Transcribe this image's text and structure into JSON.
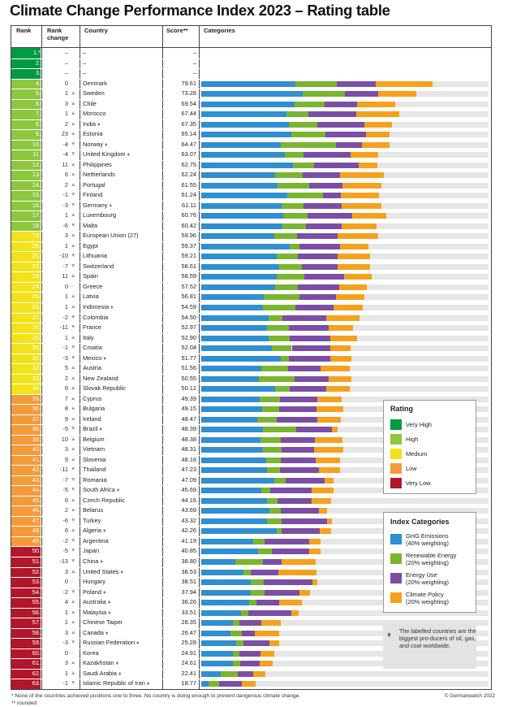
{
  "title": "Climate Change Performance Index 2023 – Rating table",
  "headers": {
    "rank": "Rank",
    "rank_change": "Rank change",
    "country": "Country",
    "score": "Score**",
    "categories": "Categories"
  },
  "colors": {
    "very_high": "#009a44",
    "high": "#8dc63f",
    "medium": "#f2e21b",
    "low": "#f49a3a",
    "very_low": "#b2162b",
    "ghg": "#2f8fd0",
    "renewable": "#7ab52f",
    "energy": "#7b4ea6",
    "policy": "#f5a11d",
    "track": "#e6e6e6",
    "flame_icon": "#777777"
  },
  "empty_rows": [
    {
      "rank": "1.*",
      "change": "–",
      "country": "–",
      "score": "–"
    },
    {
      "rank": "2.",
      "change": "–",
      "country": "–",
      "score": "–"
    },
    {
      "rank": "3.",
      "change": "–",
      "country": "–",
      "score": "–"
    }
  ],
  "chart_data": {
    "type": "stacked bar",
    "title": "Climate Change Performance Index 2023 – Rating table",
    "score_max": 100,
    "segment_order": [
      "GHG Emissions",
      "Renewable Energy",
      "Energy Use",
      "Climate Policy"
    ],
    "rows": [
      {
        "rank": "4.",
        "change": "0",
        "dir": "flat",
        "country": "Denmark",
        "score": "79.61",
        "rating": "high",
        "flame": false,
        "seg": [
          32.7,
          14.5,
          13.4,
          20.0
        ]
      },
      {
        "rank": "5.",
        "change": "1",
        "dir": "up",
        "country": "Sweden",
        "score": "73.28",
        "rating": "high",
        "flame": false,
        "seg": [
          35.2,
          14.7,
          11.8,
          13.1
        ]
      },
      {
        "rank": "6.",
        "change": "3",
        "dir": "up",
        "country": "Chile",
        "score": "69.54",
        "rating": "high",
        "flame": false,
        "seg": [
          32.6,
          10.4,
          11.3,
          13.1
        ]
      },
      {
        "rank": "7.",
        "change": "1",
        "dir": "up",
        "country": "Morocco",
        "score": "67.44",
        "rating": "high",
        "flame": false,
        "seg": [
          29.6,
          7.6,
          16.8,
          14.9
        ]
      },
      {
        "rank": "8.",
        "change": "2",
        "dir": "up",
        "country": "India",
        "score": "67.35",
        "rating": "high",
        "flame": true,
        "seg": [
          30.5,
          10.0,
          16.3,
          9.5
        ]
      },
      {
        "rank": "9.",
        "change": "23",
        "dir": "up",
        "country": "Estonia",
        "score": "65.14",
        "rating": "high",
        "flame": false,
        "seg": [
          31.4,
          11.9,
          14.1,
          8.1
        ]
      },
      {
        "rank": "10.",
        "change": "-4",
        "dir": "down",
        "country": "Norway",
        "score": "64.47",
        "rating": "high",
        "flame": true,
        "seg": [
          27.6,
          19.4,
          9.0,
          9.6
        ]
      },
      {
        "rank": "11.",
        "change": "-4",
        "dir": "down",
        "country": "United Kingdom",
        "score": "63.07",
        "rating": "high",
        "flame": true,
        "seg": [
          29.1,
          6.4,
          16.4,
          9.6
        ]
      },
      {
        "rank": "12.",
        "change": "11",
        "dir": "up",
        "country": "Philippines",
        "score": "62.75",
        "rating": "high",
        "flame": false,
        "seg": [
          31.9,
          7.3,
          15.5,
          6.5
        ]
      },
      {
        "rank": "13.",
        "change": "6",
        "dir": "up",
        "country": "Netherlands",
        "score": "62.24",
        "rating": "high",
        "flame": false,
        "seg": [
          25.7,
          9.6,
          13.0,
          15.2
        ]
      },
      {
        "rank": "14.",
        "change": "2",
        "dir": "up",
        "country": "Portugal",
        "score": "61.55",
        "rating": "high",
        "flame": false,
        "seg": [
          26.5,
          11.0,
          11.6,
          13.6
        ]
      },
      {
        "rank": "15.",
        "change": "-1",
        "dir": "down",
        "country": "Finland",
        "score": "61.24",
        "rating": "high",
        "flame": false,
        "seg": [
          29.9,
          12.4,
          6.2,
          13.4
        ]
      },
      {
        "rank": "16.",
        "change": "-3",
        "dir": "down",
        "country": "Germany",
        "score": "61.11",
        "rating": "high",
        "flame": true,
        "seg": [
          27.9,
          7.6,
          13.3,
          13.9
        ]
      },
      {
        "rank": "17.",
        "change": "1",
        "dir": "up",
        "country": "Luxembourg",
        "score": "60.76",
        "rating": "high",
        "flame": false,
        "seg": [
          28.6,
          8.5,
          15.5,
          11.9
        ]
      },
      {
        "rank": "18.",
        "change": "-6",
        "dir": "down",
        "country": "Malta",
        "score": "60.42",
        "rating": "high",
        "flame": false,
        "seg": [
          28.3,
          8.2,
          12.5,
          12.1
        ]
      },
      {
        "rank": "19.",
        "change": "3",
        "dir": "up",
        "country": "European Union (27)",
        "score": "59.96",
        "rating": "medium",
        "flame": false,
        "seg": [
          25.5,
          7.9,
          14.1,
          14.1
        ]
      },
      {
        "rank": "20.",
        "change": "1",
        "dir": "up",
        "country": "Egypt",
        "score": "59.37",
        "rating": "medium",
        "flame": false,
        "seg": [
          30.7,
          3.4,
          14.1,
          10.1
        ]
      },
      {
        "rank": "21.",
        "change": "-10",
        "dir": "down",
        "country": "Lithuania",
        "score": "59.21",
        "rating": "medium",
        "flame": false,
        "seg": [
          26.3,
          7.3,
          13.8,
          11.3
        ]
      },
      {
        "rank": "22.",
        "change": "-7",
        "dir": "down",
        "country": "Switzerland",
        "score": "58.61",
        "rating": "medium",
        "flame": false,
        "seg": [
          27.1,
          7.9,
          12.5,
          11.3
        ]
      },
      {
        "rank": "23.",
        "change": "11",
        "dir": "up",
        "country": "Spain",
        "score": "58.59",
        "rating": "medium",
        "flame": false,
        "seg": [
          26.3,
          9.6,
          13.8,
          9.6
        ]
      },
      {
        "rank": "24.",
        "change": "0",
        "dir": "flat",
        "country": "Greece",
        "score": "57.52",
        "rating": "medium",
        "flame": false,
        "seg": [
          25.7,
          7.9,
          14.5,
          9.6
        ]
      },
      {
        "rank": "25.",
        "change": "1",
        "dir": "up",
        "country": "Latvia",
        "score": "56.81",
        "rating": "medium",
        "flame": false,
        "seg": [
          21.8,
          12.5,
          12.5,
          9.9
        ]
      },
      {
        "rank": "26.",
        "change": "1",
        "dir": "up",
        "country": "Indonesia",
        "score": "54.59",
        "rating": "medium",
        "flame": true,
        "seg": [
          21.5,
          11.3,
          13.3,
          10.0
        ]
      },
      {
        "rank": "27.",
        "change": "-2",
        "dir": "down",
        "country": "Colombia",
        "score": "54.50",
        "rating": "medium",
        "flame": false,
        "seg": [
          23.5,
          4.8,
          15.2,
          11.6
        ]
      },
      {
        "rank": "28.",
        "change": "-11",
        "dir": "down",
        "country": "France",
        "score": "52.97",
        "rating": "medium",
        "flame": false,
        "seg": [
          22.9,
          7.6,
          13.8,
          8.5
        ]
      },
      {
        "rank": "29.",
        "change": "1",
        "dir": "up",
        "country": "Italy",
        "score": "52.90",
        "rating": "medium",
        "flame": false,
        "seg": [
          23.5,
          7.3,
          14.1,
          9.3
        ]
      },
      {
        "rank": "30.",
        "change": "-1",
        "dir": "down",
        "country": "Croatia",
        "score": "52.04",
        "rating": "medium",
        "flame": false,
        "seg": [
          24.5,
          7.0,
          13.4,
          7.1
        ]
      },
      {
        "rank": "31.",
        "change": "-3",
        "dir": "down",
        "country": "Mexico",
        "score": "51.77",
        "rating": "medium",
        "flame": true,
        "seg": [
          27.7,
          2.8,
          14.3,
          7.6
        ]
      },
      {
        "rank": "32.",
        "change": "5",
        "dir": "up",
        "country": "Austria",
        "score": "51.56",
        "rating": "medium",
        "flame": false,
        "seg": [
          20.8,
          9.3,
          11.3,
          10.4
        ]
      },
      {
        "rank": "33.",
        "change": "2",
        "dir": "up",
        "country": "New Zealand",
        "score": "50.55",
        "rating": "medium",
        "flame": false,
        "seg": [
          20.1,
          12.4,
          11.8,
          7.9
        ]
      },
      {
        "rank": "34.",
        "change": "6",
        "dir": "up",
        "country": "Slovak Republic",
        "score": "50.12",
        "rating": "medium",
        "flame": false,
        "seg": [
          25.7,
          5.1,
          12.7,
          8.2
        ]
      },
      {
        "rank": "35.",
        "change": "7",
        "dir": "up",
        "country": "Cyprus",
        "score": "49.39",
        "rating": "low",
        "flame": false,
        "seg": [
          20.3,
          7.1,
          13.0,
          8.5
        ]
      },
      {
        "rank": "36.",
        "change": "8",
        "dir": "up",
        "country": "Bulgaria",
        "score": "49.15",
        "rating": "low",
        "flame": false,
        "seg": [
          21.2,
          5.9,
          13.0,
          9.3
        ]
      },
      {
        "rank": "37.",
        "change": "9",
        "dir": "up",
        "country": "Ireland",
        "score": "48.47",
        "rating": "low",
        "flame": false,
        "seg": [
          19.4,
          6.8,
          14.1,
          8.2
        ]
      },
      {
        "rank": "38.",
        "change": "-5",
        "dir": "down",
        "country": "Brazil",
        "score": "48.39",
        "rating": "low",
        "flame": true,
        "seg": [
          21.5,
          11.6,
          12.4,
          2.0
        ]
      },
      {
        "rank": "39.",
        "change": "10",
        "dir": "up",
        "country": "Belgium",
        "score": "48.38",
        "rating": "low",
        "flame": false,
        "seg": [
          20.7,
          7.0,
          11.8,
          9.6
        ]
      },
      {
        "rank": "40.",
        "change": "3",
        "dir": "up",
        "country": "Vietnam",
        "score": "48.31",
        "rating": "low",
        "flame": false,
        "seg": [
          21.6,
          6.5,
          11.3,
          9.9
        ]
      },
      {
        "rank": "41.",
        "change": "9",
        "dir": "up",
        "country": "Slovenia",
        "score": "48.16",
        "rating": "low",
        "flame": false,
        "seg": [
          22.6,
          5.1,
          12.1,
          8.5
        ]
      },
      {
        "rank": "42.",
        "change": "-11",
        "dir": "down",
        "country": "Thailand",
        "score": "47.23",
        "rating": "low",
        "flame": false,
        "seg": [
          22.9,
          4.5,
          13.6,
          7.3
        ]
      },
      {
        "rank": "43.",
        "change": "-7",
        "dir": "down",
        "country": "Romania",
        "score": "47.09",
        "rating": "low",
        "flame": false,
        "seg": [
          25.4,
          4.0,
          13.6,
          3.1
        ]
      },
      {
        "rank": "44.",
        "change": "-5",
        "dir": "down",
        "country": "South Africa",
        "score": "45.69",
        "rating": "low",
        "flame": true,
        "seg": [
          20.8,
          3.3,
          14.2,
          7.7
        ]
      },
      {
        "rank": "45.",
        "change": "6",
        "dir": "up",
        "country": "Czech Republic",
        "score": "44.16",
        "rating": "low",
        "flame": false,
        "seg": [
          22.9,
          3.7,
          11.9,
          6.8
        ]
      },
      {
        "rank": "46.",
        "change": "2",
        "dir": "up",
        "country": "Belarus",
        "score": "43.69",
        "rating": "low",
        "flame": false,
        "seg": [
          23.7,
          4.0,
          13.4,
          2.8
        ]
      },
      {
        "rank": "47.",
        "change": "-6",
        "dir": "down",
        "country": "Turkey",
        "score": "43.32",
        "rating": "low",
        "flame": false,
        "seg": [
          22.9,
          5.1,
          15.8,
          1.7
        ]
      },
      {
        "rank": "48.",
        "change": "6",
        "dir": "up",
        "country": "Algeria",
        "score": "42.26",
        "rating": "low",
        "flame": true,
        "seg": [
          26.4,
          1.6,
          13.3,
          3.9
        ]
      },
      {
        "rank": "49.",
        "change": "-2",
        "dir": "down",
        "country": "Argentina",
        "score": "41.19",
        "rating": "low",
        "flame": false,
        "seg": [
          18.1,
          4.0,
          15.5,
          3.9
        ]
      },
      {
        "rank": "50.",
        "change": "-5",
        "dir": "down",
        "country": "Japan",
        "score": "40.85",
        "rating": "very_low",
        "flame": false,
        "seg": [
          19.8,
          4.8,
          13.0,
          3.9
        ]
      },
      {
        "rank": "51.",
        "change": "-13",
        "dir": "down",
        "country": "China",
        "score": "38.80",
        "rating": "very_low",
        "flame": true,
        "seg": [
          11.9,
          9.6,
          6.5,
          11.8
        ]
      },
      {
        "rank": "52.",
        "change": "3",
        "dir": "up",
        "country": "United States",
        "score": "38.53",
        "rating": "very_low",
        "flame": true,
        "seg": [
          14.7,
          2.5,
          9.6,
          13.4
        ]
      },
      {
        "rank": "53.",
        "change": "0",
        "dir": "flat",
        "country": "Hungary",
        "score": "38.51",
        "rating": "very_low",
        "flame": false,
        "seg": [
          17.3,
          4.5,
          16.9,
          1.7
        ]
      },
      {
        "rank": "54.",
        "change": "-2",
        "dir": "down",
        "country": "Poland",
        "score": "37.94",
        "rating": "very_low",
        "flame": true,
        "seg": [
          17.1,
          4.8,
          12.3,
          3.6
        ]
      },
      {
        "rank": "55.",
        "change": "4",
        "dir": "up",
        "country": "Australia",
        "score": "36.26",
        "rating": "very_low",
        "flame": true,
        "seg": [
          16.6,
          2.5,
          7.9,
          7.9
        ]
      },
      {
        "rank": "56.",
        "change": "1",
        "dir": "up",
        "country": "Malaysia",
        "score": "33.51",
        "rating": "very_low",
        "flame": true,
        "seg": [
          13.7,
          2.6,
          15.0,
          2.5
        ]
      },
      {
        "rank": "57.",
        "change": "1",
        "dir": "up",
        "country": "Chinese Taipei",
        "score": "28.35",
        "rating": "very_low",
        "flame": false,
        "seg": [
          10.9,
          2.3,
          7.6,
          7.0
        ]
      },
      {
        "rank": "58.",
        "change": "3",
        "dir": "up",
        "country": "Canada",
        "score": "26.47",
        "rating": "very_low",
        "flame": true,
        "seg": [
          10.3,
          3.9,
          4.5,
          8.4
        ]
      },
      {
        "rank": "59.",
        "change": "-3",
        "dir": "down",
        "country": "Russian Federation",
        "score": "25.28",
        "rating": "very_low",
        "flame": true,
        "seg": [
          12.1,
          2.5,
          9.1,
          3.4
        ]
      },
      {
        "rank": "60.",
        "change": "0",
        "dir": "flat",
        "country": "Korea",
        "score": "24.91",
        "rating": "very_low",
        "flame": false,
        "seg": [
          11.1,
          2.3,
          7.1,
          4.8
        ]
      },
      {
        "rank": "61.",
        "change": "3",
        "dir": "up",
        "country": "Kazakhstan",
        "score": "24.61",
        "rating": "very_low",
        "flame": true,
        "seg": [
          11.0,
          2.5,
          6.8,
          4.6
        ]
      },
      {
        "rank": "62.",
        "change": "1",
        "dir": "up",
        "country": "Saudi Arabia",
        "score": "22.41",
        "rating": "very_low",
        "flame": true,
        "seg": [
          6.8,
          6.0,
          5.4,
          4.2
        ]
      },
      {
        "rank": "63.",
        "change": "-1",
        "dir": "down",
        "country": "Islamic Republic of Iran",
        "score": "18.77",
        "rating": "very_low",
        "flame": true,
        "seg": [
          2.5,
          3.7,
          7.9,
          4.8
        ]
      }
    ]
  },
  "legend_rating": {
    "title": "Rating",
    "items": [
      {
        "label": "Very High",
        "color": "#009a44"
      },
      {
        "label": "High",
        "color": "#8dc63f"
      },
      {
        "label": "Medium",
        "color": "#f2e21b"
      },
      {
        "label": "Low",
        "color": "#f49a3a"
      },
      {
        "label": "Very Low",
        "color": "#b2162b"
      }
    ]
  },
  "legend_index": {
    "title": "Index Categories",
    "items": [
      {
        "line1": "GHG Emissions",
        "line2": "(40% weighting)",
        "color": "#2f8fd0"
      },
      {
        "line1": "Renewable Energy",
        "line2": "(20% weighting)",
        "color": "#7ab52f"
      },
      {
        "line1": "Energy Use",
        "line2": "(20% weighting)",
        "color": "#7b4ea6"
      },
      {
        "line1": "Climate Policy",
        "line2": "(20% weighting)",
        "color": "#f5a11d"
      }
    ]
  },
  "note": "The labelled countries are the biggest pro-ducers of oil, gas, and coal worldwide.",
  "footnote1": "* None of the countries achieved positions one to three. No country is doing enough to prevent dangerous climate change.",
  "footnote2": "** rounded",
  "credit": "© Germanwatch 2022",
  "flame_glyph": "♦"
}
